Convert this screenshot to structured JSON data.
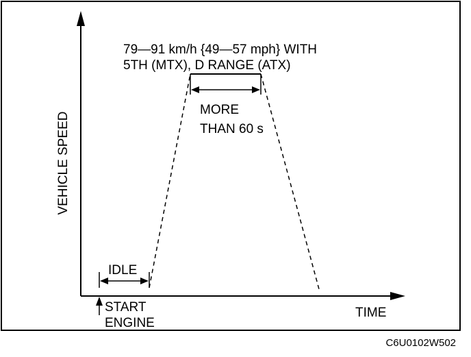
{
  "diagram": {
    "axes": {
      "y_label": "VEHICLE SPEED",
      "x_label": "TIME"
    },
    "speed_annotation": {
      "line1": "79—91 km/h {49—57 mph} WITH",
      "line2": "5TH (MTX), D RANGE (ATX)"
    },
    "hold_duration": {
      "line1": "MORE",
      "line2": "THAN 60 s"
    },
    "idle_label": "IDLE",
    "start_engine": {
      "line1": "START",
      "line2": "ENGINE"
    },
    "figure_code": "C6U0102W502"
  }
}
